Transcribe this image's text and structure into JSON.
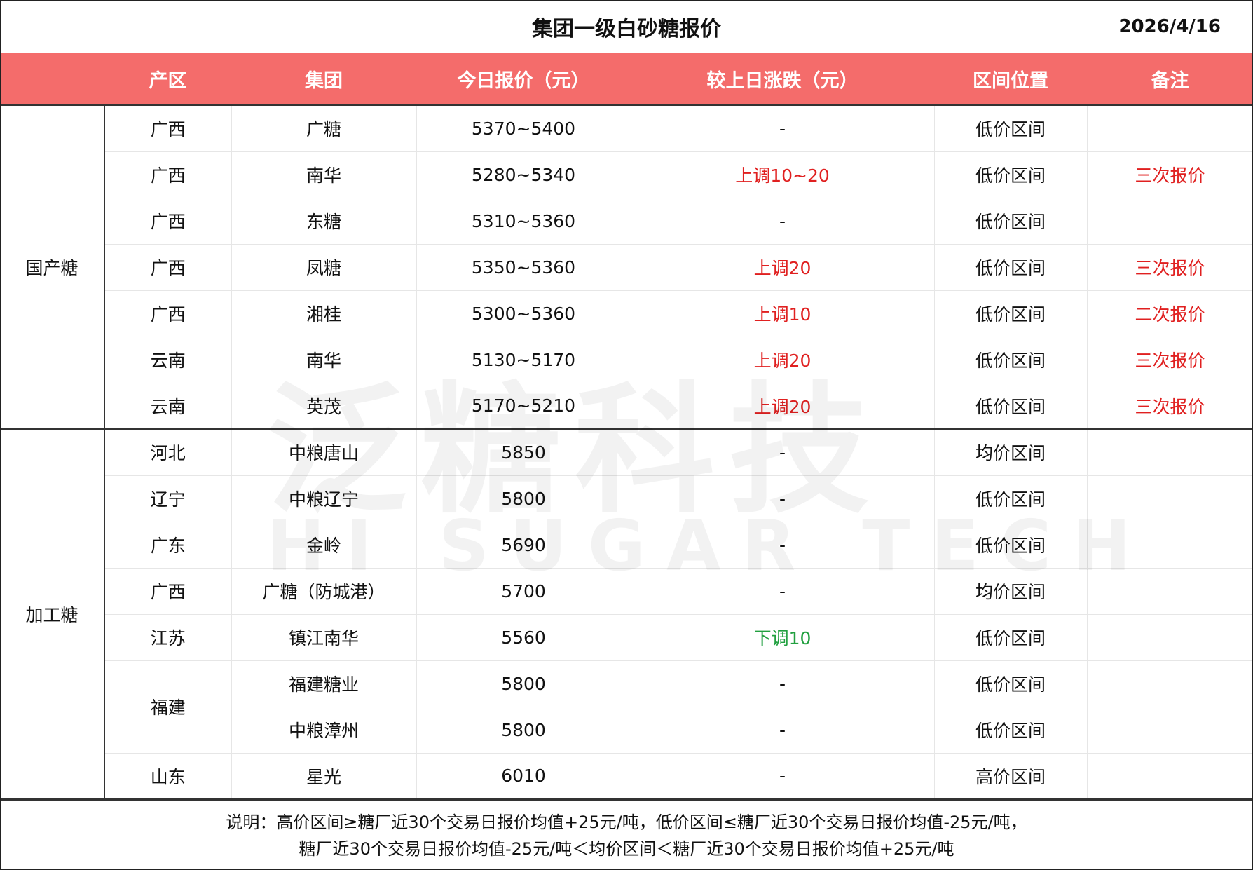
{
  "title": "集团一级白砂糖报价",
  "date": "2026/4/16",
  "headers": [
    "产区",
    "集团",
    "今日报价（元）",
    "较上日涨跌（元）",
    "区间位置",
    "备注"
  ],
  "groups": [
    {
      "category": "国产糖",
      "rows": [
        {
          "region": "广西",
          "group": "广糖",
          "price": "5370~5400",
          "change": "-",
          "change_color": "",
          "position": "低价区间",
          "note": ""
        },
        {
          "region": "广西",
          "group": "南华",
          "price": "5280~5340",
          "change": "上调10~20",
          "change_color": "red",
          "position": "低价区间",
          "note": "三次报价"
        },
        {
          "region": "广西",
          "group": "东糖",
          "price": "5310~5360",
          "change": "-",
          "change_color": "",
          "position": "低价区间",
          "note": ""
        },
        {
          "region": "广西",
          "group": "凤糖",
          "price": "5350~5360",
          "change": "上调20",
          "change_color": "red",
          "position": "低价区间",
          "note": "三次报价"
        },
        {
          "region": "广西",
          "group": "湘桂",
          "price": "5300~5360",
          "change": "上调10",
          "change_color": "red",
          "position": "低价区间",
          "note": "二次报价"
        },
        {
          "region": "云南",
          "group": "南华",
          "price": "5130~5170",
          "change": "上调20",
          "change_color": "red",
          "position": "低价区间",
          "note": "三次报价"
        },
        {
          "region": "云南",
          "group": "英茂",
          "price": "5170~5210",
          "change": "上调20",
          "change_color": "red",
          "position": "低价区间",
          "note": "三次报价"
        }
      ]
    },
    {
      "category": "加工糖",
      "rows": [
        {
          "region": "河北",
          "group": "中粮唐山",
          "price": "5850",
          "change": "-",
          "change_color": "",
          "position": "均价区间",
          "note": ""
        },
        {
          "region": "辽宁",
          "group": "中粮辽宁",
          "price": "5800",
          "change": "-",
          "change_color": "",
          "position": "低价区间",
          "note": ""
        },
        {
          "region": "广东",
          "group": "金岭",
          "price": "5690",
          "change": "-",
          "change_color": "",
          "position": "低价区间",
          "note": ""
        },
        {
          "region": "广西",
          "group": "广糖（防城港）",
          "price": "5700",
          "change": "-",
          "change_color": "",
          "position": "均价区间",
          "note": ""
        },
        {
          "region": "江苏",
          "group": "镇江南华",
          "price": "5560",
          "change": "下调10",
          "change_color": "green",
          "position": "低价区间",
          "note": ""
        },
        {
          "region": "福建",
          "region_rowspan": 2,
          "group": "福建糖业",
          "price": "5800",
          "change": "-",
          "change_color": "",
          "position": "低价区间",
          "note": ""
        },
        {
          "region": null,
          "group": "中粮漳州",
          "price": "5800",
          "change": "-",
          "change_color": "",
          "position": "低价区间",
          "note": ""
        },
        {
          "region": "山东",
          "group": "星光",
          "price": "6010",
          "change": "-",
          "change_color": "",
          "position": "高价区间",
          "note": ""
        }
      ]
    }
  ],
  "footer": [
    "说明：高价区间≥糖厂近30个交易日报价均值+25元/吨，低价区间≤糖厂近30个交易日报价均值-25元/吨，",
    "糖厂近30个交易日报价均值-25元/吨＜均价区间＜糖厂近30个交易日报价均值+25元/吨"
  ],
  "watermark": {
    "cn": "泛糖科技",
    "en": "HI SUGAR TECH"
  },
  "colors": {
    "header_bg": "#f46c6b",
    "up": "#e02020",
    "down": "#22a040"
  }
}
